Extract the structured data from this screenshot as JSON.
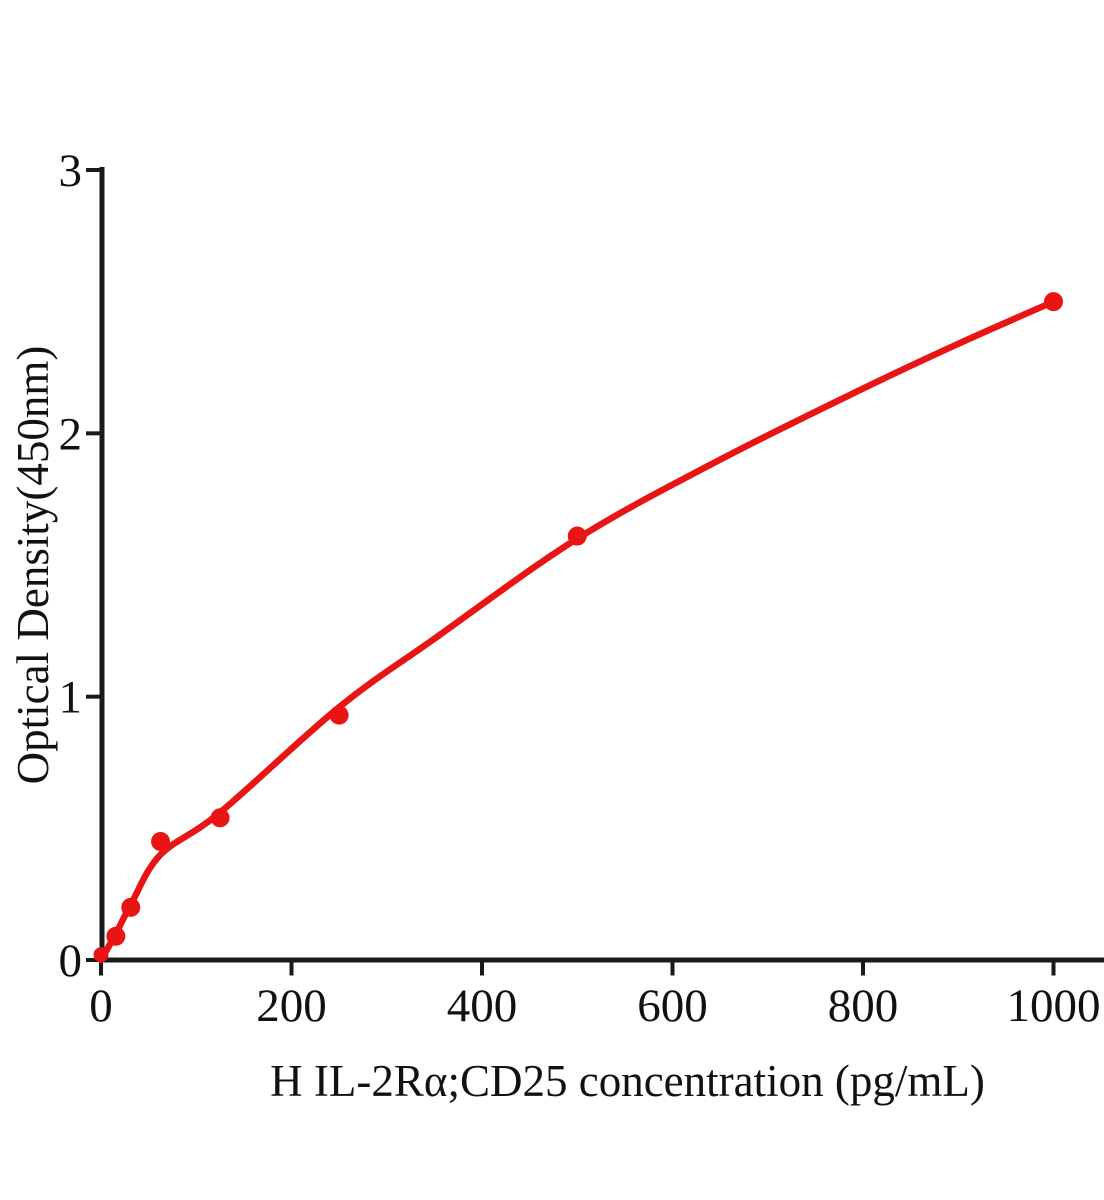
{
  "chart_data": {
    "type": "scatter",
    "title": "",
    "xlabel": "H IL-2Rα;CD25 concentration (pg/mL)",
    "ylabel": "Optical Density(450nm)",
    "x_ticks": [
      0,
      200,
      400,
      600,
      800,
      1000
    ],
    "y_ticks": [
      0,
      1,
      2,
      3
    ],
    "xlim": [
      0,
      1055
    ],
    "ylim": [
      0,
      3
    ],
    "grid": false,
    "legend": "none",
    "accent_color": "#e91414",
    "axis_color": "#1a1a1a",
    "series": [
      {
        "name": "standard points",
        "type": "scatter",
        "color": "#e91414",
        "points": [
          [
            0,
            0.02
          ],
          [
            15.6,
            0.09
          ],
          [
            31.25,
            0.2
          ],
          [
            62.5,
            0.45
          ],
          [
            125,
            0.54
          ],
          [
            250,
            0.93
          ],
          [
            500,
            1.61
          ],
          [
            1000,
            2.5
          ]
        ]
      },
      {
        "name": "fitted curve",
        "type": "line",
        "color": "#e91414",
        "points": [
          [
            0,
            0.0
          ],
          [
            15.6,
            0.1
          ],
          [
            31.25,
            0.21
          ],
          [
            62.5,
            0.4
          ],
          [
            125,
            0.56
          ],
          [
            250,
            0.96
          ],
          [
            350,
            1.22
          ],
          [
            500,
            1.6
          ],
          [
            650,
            1.9
          ],
          [
            800,
            2.17
          ],
          [
            900,
            2.34
          ],
          [
            1000,
            2.5
          ]
        ]
      }
    ]
  }
}
